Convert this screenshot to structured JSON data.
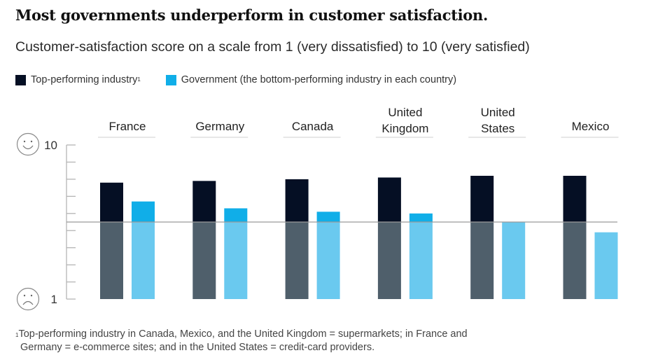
{
  "title": "Most governments underperform in customer satisfaction.",
  "subtitle": "Customer-satisfaction score on a scale from 1 (very dissatisfied) to 10 (very satisfied)",
  "legend": [
    {
      "label": "Top-performing industry",
      "footnote_mark": "1",
      "color": "#050f24"
    },
    {
      "label": "Government (the bottom-performing industry in each country)",
      "footnote_mark": "",
      "color": "#10aee8"
    }
  ],
  "axis_icons": {
    "top": "smiley-face-icon",
    "bottom": "frowning-face-icon"
  },
  "footnote": {
    "mark": "1",
    "line1": "Top-performing industry in Canada, Mexico, and the United Kingdom = supermarkets; in France and",
    "line2": "Germany = e-commerce sites; and in the United States = credit-card providers."
  },
  "colors": {
    "top_above": "#050f24",
    "top_below": "#4f5f6b",
    "gov_above": "#10aee8",
    "gov_below": "#6ac9ef",
    "reference_line": "#9b9b9b",
    "axis": "#b5b5b5",
    "category_rule": "#cfcfcf"
  },
  "chart_data": {
    "type": "bar",
    "title": "Most governments underperform in customer satisfaction.",
    "subtitle": "Customer-satisfaction score on a scale from 1 (very dissatisfied) to 10 (very satisfied)",
    "xlabel": "",
    "ylabel": "",
    "ylim": [
      1,
      10
    ],
    "yticks": [
      1,
      2,
      3,
      4,
      5,
      6,
      7,
      8,
      9,
      10
    ],
    "ytick_labels": {
      "1": "1",
      "10": "10"
    },
    "reference_value": 5.5,
    "grid": false,
    "legend_position": "top-left",
    "categories": [
      "France",
      "Germany",
      "Canada",
      "United Kingdom",
      "United States",
      "Mexico"
    ],
    "category_labels": [
      [
        "France"
      ],
      [
        "Germany"
      ],
      [
        "Canada"
      ],
      [
        "United",
        "Kingdom"
      ],
      [
        "United",
        "States"
      ],
      [
        "Mexico"
      ]
    ],
    "series": [
      {
        "name": "Top-performing industry",
        "values": [
          7.8,
          7.9,
          8.0,
          8.1,
          8.2,
          8.2
        ]
      },
      {
        "name": "Government (the bottom-performing industry in each country)",
        "values": [
          6.7,
          6.3,
          6.1,
          6.0,
          5.5,
          4.9
        ]
      }
    ]
  }
}
